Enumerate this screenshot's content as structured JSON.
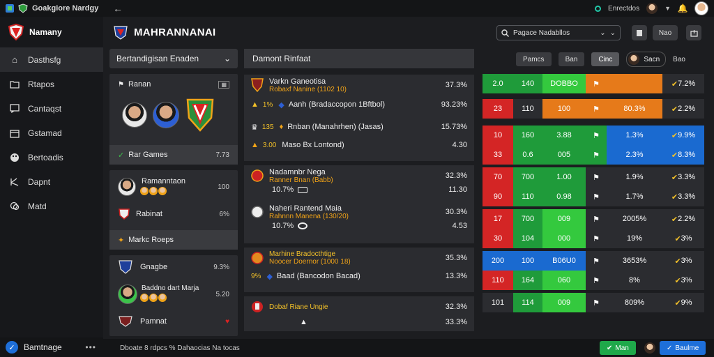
{
  "topbar": {
    "app_title": "Goakgiore Nardgy",
    "status": "Enrectdos"
  },
  "sidebar": {
    "brand": "Namany",
    "items": [
      {
        "label": "Dasthsfg",
        "icon": "home-icon"
      },
      {
        "label": "Rtapos",
        "icon": "folder-icon"
      },
      {
        "label": "Cantaqst",
        "icon": "message-icon"
      },
      {
        "label": "Gstamad",
        "icon": "calendar-icon"
      },
      {
        "label": "Bertoadis",
        "icon": "palette-icon"
      },
      {
        "label": "Dapnt",
        "icon": "signature-icon"
      },
      {
        "label": "Matd",
        "icon": "chat-icon"
      }
    ],
    "footer_label": "Bamtnage"
  },
  "header": {
    "title": "MAHRANNANAI",
    "search_value": "Pagace Nadabllos",
    "btn_2": "Nao"
  },
  "left_panel": {
    "header": "Bertandigisan Enaden",
    "team_card": {
      "title": "Ranan",
      "footer_label": "Rar Games",
      "footer_value": "7.73"
    },
    "player_card": {
      "name": "Ramanntaon",
      "value": "100",
      "row2_label": "Rabinat",
      "row2_value": "6%",
      "strip_label": "Markc Roeps"
    },
    "third_card": {
      "row1_label": "Gnagbe",
      "row1_value": "9.3%",
      "row2_label": "Baddno dart Marja",
      "row2_value": "5.20",
      "row3_label": "Pamnat"
    }
  },
  "mid_panel": {
    "header": "Damont Rinfaat",
    "matches": [
      {
        "title": "Varkn Ganeotisa",
        "subtitle": "Robaxf Nanine (1102 10)",
        "pct": "37.3%",
        "line2_a": "1%",
        "line2_b": "Aanh (Bradaccopon 1Bftbol)",
        "line2_pct": "93.23%",
        "line3_a": "135",
        "line3_b": "Rnban (Manahrhen) (Jasas)",
        "line3_pct": "15.73%",
        "line4_a": "3.00",
        "line4_b": "Maso Bx Lontond)",
        "line4_pct": "4.30"
      },
      {
        "title": "Nadamnbr Nega",
        "subtitle": "Ranner Bnan (Babb)",
        "pct": "32.3%",
        "small_value": "10.7%",
        "line2_pct": "11.30"
      },
      {
        "title": "Naheri Rantend Maia",
        "subtitle": "Rahnnn Manena (130/20)",
        "pct": "30.3%",
        "small_value": "10.7%",
        "line2_pct": "4.53"
      },
      {
        "title": "Marhine Bradocthtige",
        "subtitle": "Noocer Doernor (1000 18)",
        "pct": "35.3%",
        "line2_a": "9%",
        "line2_b": "Baad (Bancodon Bacad)",
        "line2_pct": "13.3%"
      },
      {
        "title": "Dobaf Riane Ungie",
        "pct": "32.3%",
        "line2_pct": "33.3%"
      }
    ]
  },
  "filters": [
    "Pamcs",
    "Ban",
    "Cinc"
  ],
  "filters_user": "Sacn",
  "filters_extra": "Bao",
  "heat_table": {
    "rows": [
      {
        "c1": "2.0",
        "c2": "140",
        "c3": "DOBBO",
        "c4": "",
        "c5": "",
        "c6": "7.2%",
        "colors": [
          "#1f9b3a",
          "#1f9b3a",
          "#34c93e",
          "#e67a1a",
          "#e67a1a",
          "#2b2c30"
        ]
      },
      {
        "c1": "23",
        "c2": "110",
        "c3": "100",
        "c4": "",
        "c5": "80.3%",
        "c6": "2.2%",
        "colors": [
          "#d42525",
          "#2b2c30",
          "#e67a1a",
          "#e67a1a",
          "#e67a1a",
          "#2b2c30"
        ]
      },
      {
        "c1": "10",
        "c2": "160",
        "c3": "3.88",
        "c4": "",
        "c5": "1.3%",
        "c6": "9.9%",
        "colors": [
          "#d42525",
          "#1f9b3a",
          "#1f9b3a",
          "#1f9b3a",
          "#1a6ad0",
          "#1a6ad0"
        ]
      },
      {
        "c1": "33",
        "c2": "0.6",
        "c3": "005",
        "c4": "",
        "c5": "2.3%",
        "c6": "8.3%",
        "colors": [
          "#d42525",
          "#1f9b3a",
          "#1f9b3a",
          "#1f9b3a",
          "#1a6ad0",
          "#1a6ad0"
        ]
      },
      {
        "c1": "70",
        "c2": "700",
        "c3": "1.00",
        "c4": "",
        "c5": "1.9%",
        "c6": "3.3%",
        "colors": [
          "#d42525",
          "#1f9b3a",
          "#1f9b3a",
          "#2b2c30",
          "#2b2c30",
          "#2b2c30"
        ]
      },
      {
        "c1": "90",
        "c2": "110",
        "c3": "0.98",
        "c4": "",
        "c5": "1.7%",
        "c6": "3.3%",
        "colors": [
          "#d42525",
          "#1f9b3a",
          "#1f9b3a",
          "#2b2c30",
          "#2b2c30",
          "#2b2c30"
        ]
      },
      {
        "c1": "17",
        "c2": "700",
        "c3": "009",
        "c4": "",
        "c5": "2005%",
        "c6": "2.2%",
        "colors": [
          "#d42525",
          "#1f9b3a",
          "#34c93e",
          "#2b2c30",
          "#2b2c30",
          "#2b2c30"
        ]
      },
      {
        "c1": "30",
        "c2": "104",
        "c3": "000",
        "c4": "",
        "c5": "19%",
        "c6": "3%",
        "colors": [
          "#d42525",
          "#1f9b3a",
          "#34c93e",
          "#2b2c30",
          "#2b2c30",
          "#2b2c30"
        ]
      },
      {
        "c1": "200",
        "c2": "100",
        "c3": "B06U0",
        "c4": "",
        "c5": "3653%",
        "c6": "3%",
        "colors": [
          "#1a6ad0",
          "#1a6ad0",
          "#1a6ad0",
          "#2b2c30",
          "#2b2c30",
          "#2b2c30"
        ]
      },
      {
        "c1": "110",
        "c2": "164",
        "c3": "060",
        "c4": "",
        "c5": "8%",
        "c6": "3%",
        "colors": [
          "#d42525",
          "#1f9b3a",
          "#34c93e",
          "#2b2c30",
          "#2b2c30",
          "#2b2c30"
        ]
      },
      {
        "c1": "101",
        "c2": "114",
        "c3": "009",
        "c4": "",
        "c5": "809%",
        "c6": "9%",
        "colors": [
          "#2b2c30",
          "#1f9b3a",
          "#34c93e",
          "#2b2c30",
          "#2b2c30",
          "#2b2c30"
        ]
      }
    ]
  },
  "bottom_bar": {
    "text": "Dboate 8 rdpcs  %  Dahaocias Na tocas",
    "btn_green": "Man",
    "btn_blue": "Baulme"
  }
}
